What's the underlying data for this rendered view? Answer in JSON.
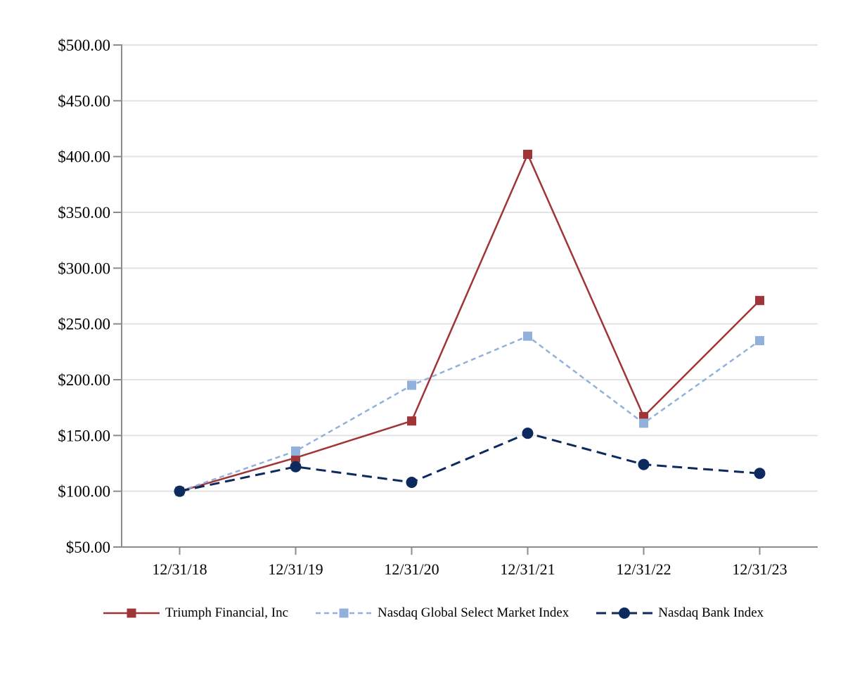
{
  "chart_data": {
    "type": "line",
    "title": "",
    "categories": [
      "12/31/18",
      "12/31/19",
      "12/31/20",
      "12/31/21",
      "12/31/22",
      "12/31/23"
    ],
    "y_axis": {
      "min": 50,
      "max": 500,
      "tick_values": [
        500,
        450,
        400,
        350,
        300,
        250,
        200,
        150,
        100,
        50
      ],
      "tick_labels": [
        "$500.00",
        "$450.00",
        "$400.00",
        "$350.00",
        "$300.00",
        "$250.00",
        "$200.00",
        "$150.00",
        "$100.00",
        "$50.00"
      ]
    },
    "series": [
      {
        "name": "Triumph Financial, Inc",
        "color": "#A03538",
        "line_style": "solid",
        "dash": "",
        "line_width": 2.5,
        "marker": "square",
        "values": [
          100,
          130,
          163,
          402,
          167,
          271
        ]
      },
      {
        "name": "Nasdaq Global Select Market Index",
        "color": "#91B1DC",
        "line_style": "dashed",
        "dash": "7 5",
        "line_width": 2.5,
        "marker": "square",
        "values": [
          100,
          136,
          195,
          239,
          161,
          235
        ]
      },
      {
        "name": "Nasdaq Bank Index",
        "color": "#0D2A5F",
        "line_style": "long-dash",
        "dash": "14 8",
        "line_width": 3,
        "marker": "circle",
        "values": [
          100,
          122,
          108,
          152,
          124,
          116
        ]
      }
    ],
    "grid": true,
    "legend_position": "bottom",
    "colors": {
      "gridline": "#E3E3E3",
      "axis": "#8C8C8C",
      "text": "#000000",
      "background": "#FFFFFF"
    }
  }
}
